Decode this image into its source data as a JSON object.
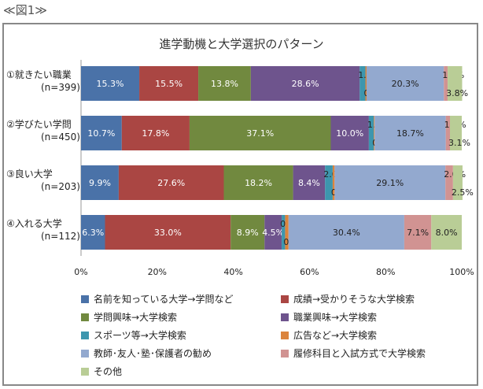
{
  "figure_label": "≪図1≫",
  "chart_data": {
    "type": "bar",
    "stacked": true,
    "orientation": "horizontal",
    "title": "進学動機と大学選択のパターン",
    "categories": [
      [
        "①就きたい職業",
        "(n=399)"
      ],
      [
        "②学びたい学問",
        "(n=450)"
      ],
      [
        "③良い大学",
        "(n=203)"
      ],
      [
        "④入れる大学",
        "(n=112)"
      ]
    ],
    "series": [
      {
        "name": "名前を知っている大学→学問など",
        "color": "#4a72a8",
        "values": [
          15.3,
          10.7,
          9.9,
          6.3
        ]
      },
      {
        "name": "成績→受かりそうな大学検索",
        "color": "#aa4643",
        "values": [
          15.5,
          17.8,
          27.6,
          33.0
        ]
      },
      {
        "name": "学問興味→大学検索",
        "color": "#71893f",
        "values": [
          13.8,
          37.1,
          18.2,
          8.9
        ]
      },
      {
        "name": "職業興味→大学検索",
        "color": "#6e548d",
        "values": [
          28.6,
          10.0,
          8.4,
          4.5
        ]
      },
      {
        "name": "スポーツ等→大学検索",
        "color": "#3d96ae",
        "values": [
          1.5,
          1.3,
          2.0,
          0.9
        ]
      },
      {
        "name": "広告など→大学検索",
        "color": "#db843d",
        "values": [
          0.3,
          0.2,
          0.5,
          0.9
        ]
      },
      {
        "name": "教師･友人･塾･保護者の勧め",
        "color": "#93a9cf",
        "values": [
          20.3,
          18.7,
          29.1,
          30.4
        ]
      },
      {
        "name": "履修科目と入試方式で大学検索",
        "color": "#d19392",
        "values": [
          1.0,
          1.1,
          2.0,
          7.1
        ]
      },
      {
        "name": "その他",
        "color": "#b9cd96",
        "values": [
          3.8,
          3.1,
          2.5,
          8.0
        ]
      }
    ],
    "xlim": [
      0,
      100
    ],
    "xticks": [
      "0%",
      "20%",
      "40%",
      "60%",
      "80%",
      "100%"
    ],
    "legend": "bottom"
  }
}
